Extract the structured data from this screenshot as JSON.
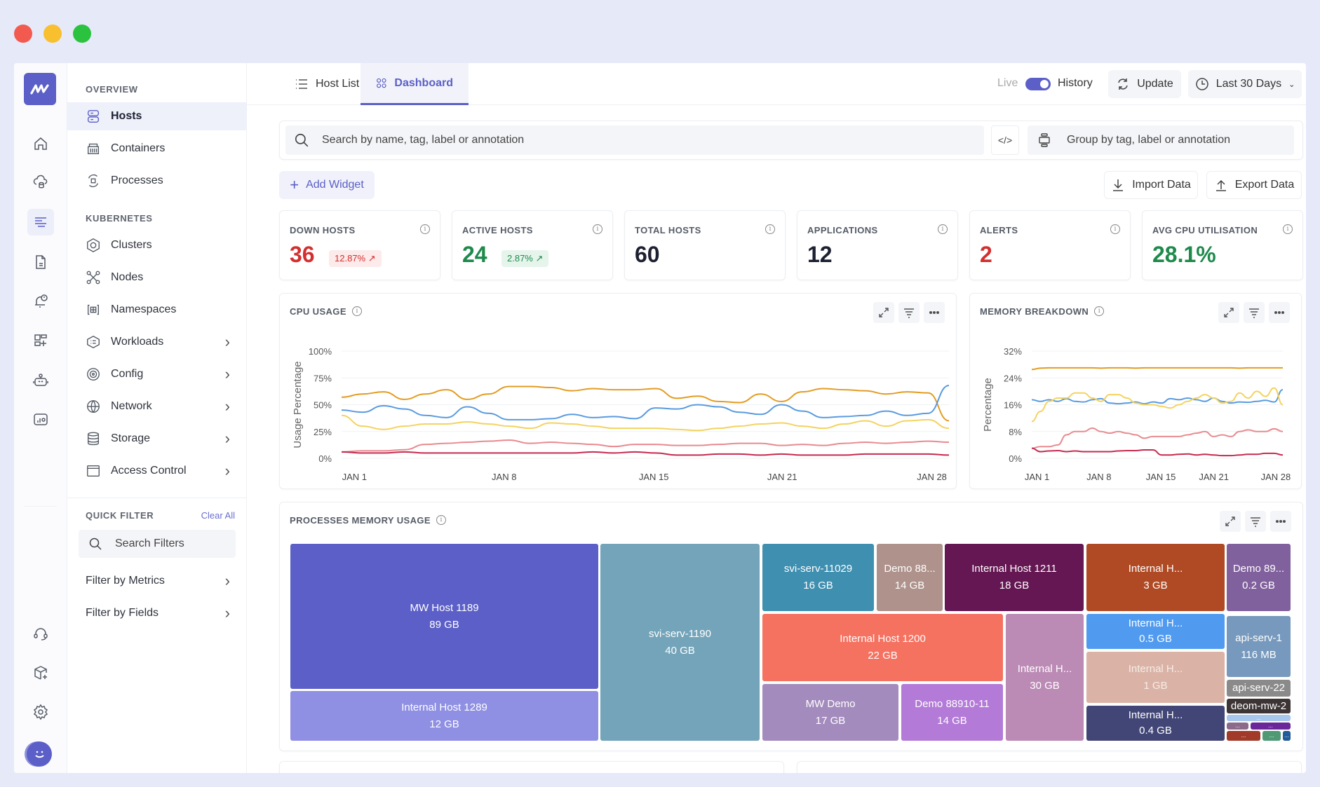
{
  "window_controls": {
    "close_color": "#f25a50",
    "minimize_color": "#f8bf2e",
    "maximize_color": "#2ac23e"
  },
  "rail": {
    "top_icons": [
      "home-icon",
      "cloud-database-icon",
      "list-filter-icon",
      "document-icon",
      "alert-bell-icon",
      "add-widget-icon",
      "robot-icon",
      "user-analytics-icon"
    ],
    "bottom_icons": [
      "headset-icon",
      "package-add-icon",
      "gear-icon",
      "avatar"
    ]
  },
  "sidebar": {
    "overview_label": "OVERVIEW",
    "overview_items": [
      {
        "label": "Hosts",
        "icon": "server-icon",
        "active": true
      },
      {
        "label": "Containers",
        "icon": "container-icon"
      },
      {
        "label": "Processes",
        "icon": "process-icon"
      }
    ],
    "kubernetes_label": "KUBERNETES",
    "kubernetes_items": [
      {
        "label": "Clusters",
        "icon": "hexagon-icon"
      },
      {
        "label": "Nodes",
        "icon": "nodes-icon"
      },
      {
        "label": "Namespaces",
        "icon": "namespace-icon"
      },
      {
        "label": "Workloads",
        "icon": "workload-icon",
        "chevron": true
      },
      {
        "label": "Config",
        "icon": "target-icon",
        "chevron": true
      },
      {
        "label": "Network",
        "icon": "globe-icon",
        "chevron": true
      },
      {
        "label": "Storage",
        "icon": "database-icon",
        "chevron": true
      },
      {
        "label": "Access Control",
        "icon": "browser-window-icon",
        "chevron": true
      }
    ],
    "quick_filter_label": "QUICK FILTER",
    "clear_all": "Clear All",
    "search_filters_placeholder": "Search Filters",
    "filters": [
      {
        "label": "Filter by Metrics"
      },
      {
        "label": "Filter by Fields"
      }
    ]
  },
  "tabs": [
    {
      "label": "Host List"
    },
    {
      "label": "Dashboard",
      "active": true
    }
  ],
  "header": {
    "live": "Live",
    "history": "History",
    "toggle_on": true,
    "update": "Update",
    "range": "Last 30 Days"
  },
  "search": {
    "placeholder": "Search by name, tag, label or annotation",
    "group_placeholder": "Group by tag, label or annotation"
  },
  "actions": {
    "add_widget": "Add Widget",
    "import": "Import Data",
    "export": "Export Data"
  },
  "kpis": [
    {
      "title": "DOWN HOSTS",
      "value": "36",
      "color": "#d32f2f",
      "badge": "12.87% ↗",
      "badge_color": "#d32f2f",
      "badge_bg": "#fdeaea"
    },
    {
      "title": "ACTIVE HOSTS",
      "value": "24",
      "color": "#1e8a4c",
      "badge": "2.87% ↗",
      "badge_color": "#1e8a4c",
      "badge_bg": "#e6f5ec"
    },
    {
      "title": "TOTAL HOSTS",
      "value": "60",
      "color": "#1d2030"
    },
    {
      "title": "APPLICATIONS",
      "value": "12",
      "color": "#1d2030"
    },
    {
      "title": "ALERTS",
      "value": "2",
      "color": "#d32f2f"
    },
    {
      "title": "AVG CPU UTILISATION",
      "value": "28.1%",
      "color": "#1e8a4c"
    }
  ],
  "chart_data": [
    {
      "type": "line",
      "title": "CPU USAGE",
      "ylabel": "Usage Percentage",
      "ylim": [
        0,
        100
      ],
      "yticks": [
        "100%",
        "75%",
        "50%",
        "25%",
        "0%"
      ],
      "ytick_values": [
        100,
        75,
        50,
        25,
        0
      ],
      "xticks": [
        "JAN 1",
        "JAN 8",
        "JAN 15",
        "JAN 21",
        "JAN 28"
      ],
      "xtick_days": [
        1,
        8,
        15,
        21,
        28
      ],
      "xrange_days": [
        0.4,
        28.8
      ],
      "series": [
        {
          "name": "orange",
          "color": "#e39c22",
          "values": [
            57,
            60,
            62,
            55,
            60,
            64,
            55,
            60,
            67,
            67,
            66,
            63,
            65,
            64,
            64,
            65,
            56,
            58,
            53,
            52,
            60,
            53,
            62,
            65,
            64,
            63,
            60,
            62,
            61,
            35
          ]
        },
        {
          "name": "blue",
          "color": "#5a9be0",
          "values": [
            45,
            43,
            49,
            46,
            40,
            38,
            48,
            42,
            36,
            36,
            37,
            41,
            38,
            39,
            37,
            47,
            46,
            50,
            48,
            43,
            41,
            50,
            44,
            38,
            39,
            40,
            44,
            40,
            42,
            68
          ]
        },
        {
          "name": "yellow",
          "color": "#f4d35e",
          "values": [
            40,
            30,
            27,
            30,
            32,
            32,
            34,
            32,
            30,
            28,
            33,
            32,
            30,
            28,
            28,
            28,
            27,
            26,
            28,
            30,
            32,
            33,
            30,
            28,
            32,
            35,
            30,
            35,
            36,
            28
          ]
        },
        {
          "name": "pink",
          "color": "#e88a8f",
          "values": [
            6,
            7,
            7,
            8,
            13,
            14,
            15,
            16,
            17,
            14,
            15,
            14,
            13,
            11,
            13,
            13,
            12,
            12,
            13,
            14,
            14,
            12,
            13,
            12,
            14,
            15,
            14,
            15,
            16,
            15
          ]
        },
        {
          "name": "red",
          "color": "#c62a50",
          "values": [
            6,
            5,
            5,
            6,
            5,
            5,
            5,
            5,
            5,
            5,
            5,
            5,
            6,
            5,
            6,
            5,
            3,
            3,
            4,
            4,
            3,
            4,
            3,
            3,
            3,
            4,
            4,
            4,
            4,
            3
          ]
        }
      ]
    },
    {
      "type": "line",
      "title": "MEMORY BREAKDOWN",
      "ylabel": "Percentage",
      "ylim": [
        0,
        32
      ],
      "yticks": [
        "32%",
        "24%",
        "16%",
        "8%",
        "0%"
      ],
      "ytick_values": [
        32,
        24,
        16,
        8,
        0
      ],
      "xticks": [
        "JAN 1",
        "JAN 8",
        "JAN 15",
        "JAN 21",
        "JAN 28"
      ],
      "xtick_days": [
        1,
        8,
        15,
        21,
        28
      ],
      "xrange_days": [
        0.4,
        28.8
      ],
      "series": [
        {
          "name": "orange",
          "color": "#e39c22",
          "values": [
            26.5,
            26.9,
            27,
            27,
            27,
            27,
            27,
            27,
            26.9,
            27,
            27,
            27,
            26.9,
            27,
            27,
            27,
            27,
            27,
            27,
            27,
            27,
            27,
            27,
            27,
            26.9,
            27,
            27,
            27,
            27,
            27
          ]
        },
        {
          "name": "blue",
          "color": "#5a9be0",
          "values": [
            17.5,
            17,
            17.5,
            17,
            17.8,
            17,
            16.8,
            17.5,
            17.8,
            16.5,
            16.3,
            16.5,
            16.8,
            16.3,
            16.8,
            16.5,
            17.8,
            17.5,
            18,
            17.5,
            17,
            18,
            17,
            16.5,
            16.8,
            16.7,
            17,
            17.3,
            16.8,
            20.5
          ]
        },
        {
          "name": "yellow",
          "color": "#f4d35e",
          "values": [
            11,
            14,
            17,
            18,
            18,
            19.5,
            19.5,
            18,
            17,
            19,
            19,
            18,
            16.5,
            16,
            16,
            15.5,
            15,
            16,
            17,
            18,
            19,
            18,
            16.5,
            17,
            19.5,
            18,
            20,
            18.5,
            21,
            16
          ]
        },
        {
          "name": "pink",
          "color": "#e88a8f",
          "values": [
            3,
            3.5,
            3.5,
            4,
            7,
            8,
            8,
            9,
            8,
            7.5,
            8,
            7.5,
            7,
            6,
            6.5,
            6.5,
            6.5,
            6.5,
            7,
            7.5,
            8,
            6.5,
            7,
            6.5,
            8,
            8.5,
            8,
            8,
            8.8,
            8
          ]
        },
        {
          "name": "red",
          "color": "#c62a50",
          "values": [
            3,
            2,
            2.2,
            2.3,
            2,
            2.2,
            2,
            2,
            2,
            2,
            2.2,
            2.3,
            2.3,
            2.5,
            2.5,
            1,
            1,
            1.2,
            1.3,
            1,
            1.2,
            1,
            0.8,
            0.8,
            1,
            1.2,
            1.2,
            1.5,
            1.5,
            1
          ]
        }
      ]
    }
  ],
  "treemap": {
    "title": "PROCESSES MEMORY USAGE",
    "cells": [
      {
        "label": "MW Host 1189",
        "value": "89 GB",
        "color": "#5b5fc7"
      },
      {
        "label": "Internal Host 1289",
        "value": "12 GB",
        "color": "#8f8fe3"
      },
      {
        "label": "svi-serv-1190",
        "value": "40 GB",
        "color": "#74a4b9"
      },
      {
        "label": "svi-serv-11029",
        "value": "16 GB",
        "color": "#3f8fb0"
      },
      {
        "label": "Demo 88...",
        "value": "14 GB",
        "color": "#ae928b"
      },
      {
        "label": "Internal Host 1211",
        "value": "18 GB",
        "color": "#641752"
      },
      {
        "label": "Internal H...",
        "value": "3 GB",
        "color": "#b04a24"
      },
      {
        "label": "Demo 89...",
        "value": "0.2 GB",
        "color": "#80609d"
      },
      {
        "label": "Internal Host 1200",
        "value": "22 GB",
        "color": "#f57160"
      },
      {
        "label": "MW Demo",
        "value": "17 GB",
        "color": "#a48bbd"
      },
      {
        "label": "Demo 88910-11",
        "value": "14 GB",
        "color": "#b37ad8"
      },
      {
        "label": "Internal H...",
        "value": "30 GB",
        "color": "#bb8ab5"
      },
      {
        "label": "Internal H...",
        "value": "0.5 GB",
        "color": "#509bef"
      },
      {
        "label": "Internal H...",
        "value": "1 GB",
        "color": "#dab3a6"
      },
      {
        "label": "Internal H...",
        "value": "0.4 GB",
        "color": "#414676"
      },
      {
        "label": "api-serv-1",
        "value": "116 MB",
        "color": "#7699bd"
      },
      {
        "label": "api-serv-22",
        "value": "",
        "color": "#8a8a8a"
      },
      {
        "label": "deom-mw-2",
        "value": "",
        "color": "#3d3535"
      },
      {
        "label": "...",
        "value": "",
        "color": "#a7c7ec"
      },
      {
        "label": "...",
        "value": "",
        "color": "#8c6a8a"
      },
      {
        "label": "...",
        "value": "",
        "color": "#6b2799"
      },
      {
        "label": "...",
        "value": "",
        "color": "#a23a2a"
      },
      {
        "label": "...",
        "value": "",
        "color": "#4f9a75"
      },
      {
        "label": "...",
        "value": "",
        "color": "#235a9a"
      }
    ]
  }
}
